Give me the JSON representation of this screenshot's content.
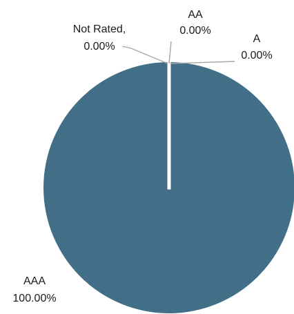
{
  "chart_data": {
    "type": "pie",
    "colors": {
      "AAA": "#426f87",
      "Not Rated": "#426f87",
      "AA": "#426f87",
      "A": "#426f87"
    },
    "slices": [
      {
        "name": "AAA",
        "value": 100.0,
        "label": [
          "AAA",
          "100.00%"
        ]
      },
      {
        "name": "Not Rated",
        "value": 0.0,
        "label": [
          "Not Rated,",
          "0.00%"
        ]
      },
      {
        "name": "AA",
        "value": 0.0,
        "label": [
          "AA",
          "0.00%"
        ]
      },
      {
        "name": "A",
        "value": 0.0,
        "label": [
          "A",
          "0.00%"
        ]
      }
    ]
  }
}
